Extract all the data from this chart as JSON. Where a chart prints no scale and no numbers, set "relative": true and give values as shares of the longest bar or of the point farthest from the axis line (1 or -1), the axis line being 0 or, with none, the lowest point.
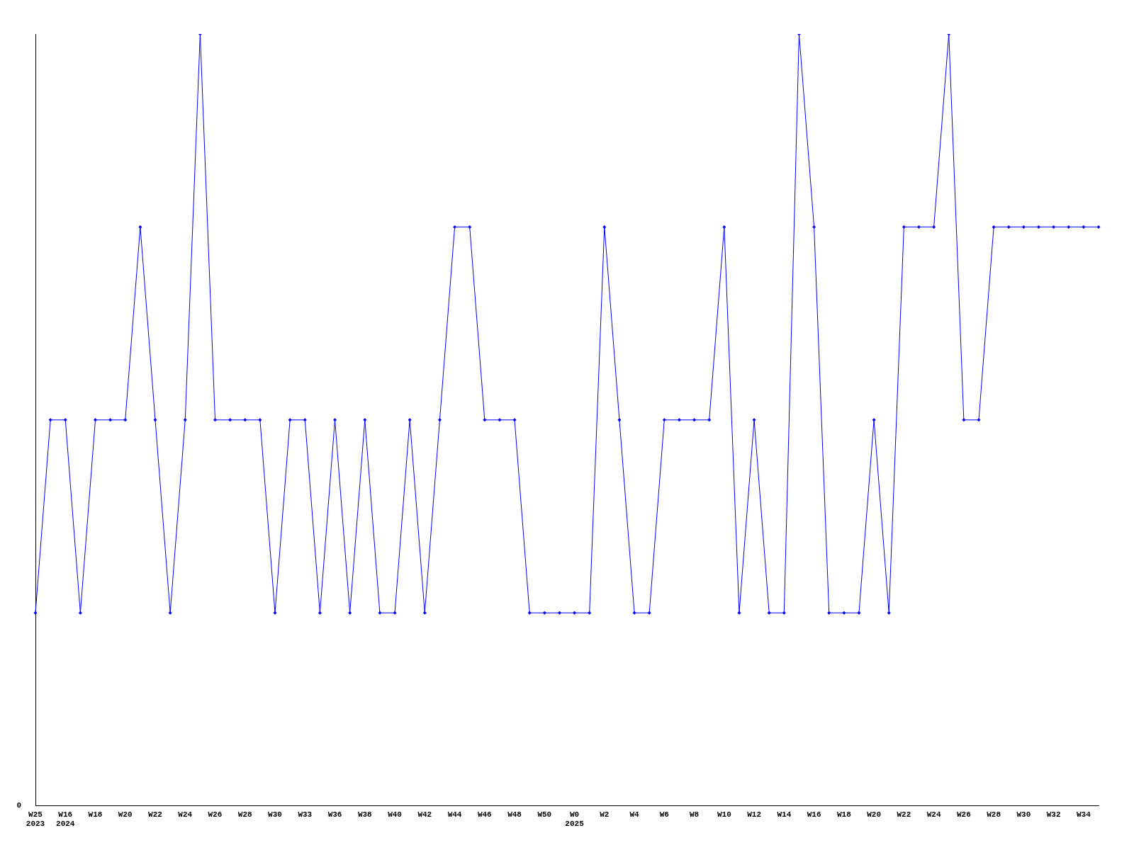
{
  "chart_data": {
    "type": "line",
    "relative": true,
    "marker": "diamond",
    "grid": false,
    "legend": false,
    "categories": [
      "W25\n2023",
      null,
      "W16\n2024",
      null,
      "W18",
      null,
      "W20",
      null,
      "W22",
      null,
      "W24",
      null,
      "W26",
      null,
      "W28",
      null,
      "W30",
      null,
      "W33",
      null,
      "W36",
      null,
      "W38",
      null,
      "W40",
      null,
      "W42",
      null,
      "W44",
      null,
      "W46",
      null,
      "W48",
      null,
      "W50",
      null,
      "W0\n2025",
      null,
      "W2",
      null,
      "W4",
      null,
      "W6",
      null,
      "W8",
      null,
      "W10",
      null,
      "W12",
      null,
      "W14",
      null,
      "W16",
      null,
      "W18",
      null,
      "W20",
      null,
      "W22",
      null,
      "W24",
      null,
      "W26",
      null,
      "W28",
      null,
      "W30",
      null,
      "W32",
      null,
      "W34",
      null
    ],
    "series": [
      {
        "color": "#0000ff",
        "values": [
          0.25,
          0.5,
          0.5,
          0.25,
          0.5,
          0.5,
          0.5,
          0.75,
          0.5,
          0.25,
          0.5,
          1,
          0.5,
          0.5,
          0.5,
          0.5,
          0.25,
          0.5,
          0.5,
          0.25,
          0.5,
          0.25,
          0.5,
          0.25,
          0.25,
          0.5,
          0.25,
          0.5,
          0.75,
          0.75,
          0.5,
          0.5,
          0.5,
          0.25,
          0.25,
          0.25,
          0.25,
          0.25,
          0.75,
          0.5,
          0.25,
          0.25,
          0.5,
          0.5,
          0.5,
          0.5,
          0.75,
          0.25,
          0.5,
          0.25,
          0.25,
          1,
          0.75,
          0.25,
          0.25,
          0.25,
          0.5,
          0.25,
          0.75,
          0.75,
          0.75,
          1,
          0.5,
          0.5,
          0.75,
          0.75,
          0.75,
          0.75,
          0.75,
          0.75,
          0.75,
          0.75
        ]
      }
    ],
    "annotations": [
      "0"
    ]
  }
}
